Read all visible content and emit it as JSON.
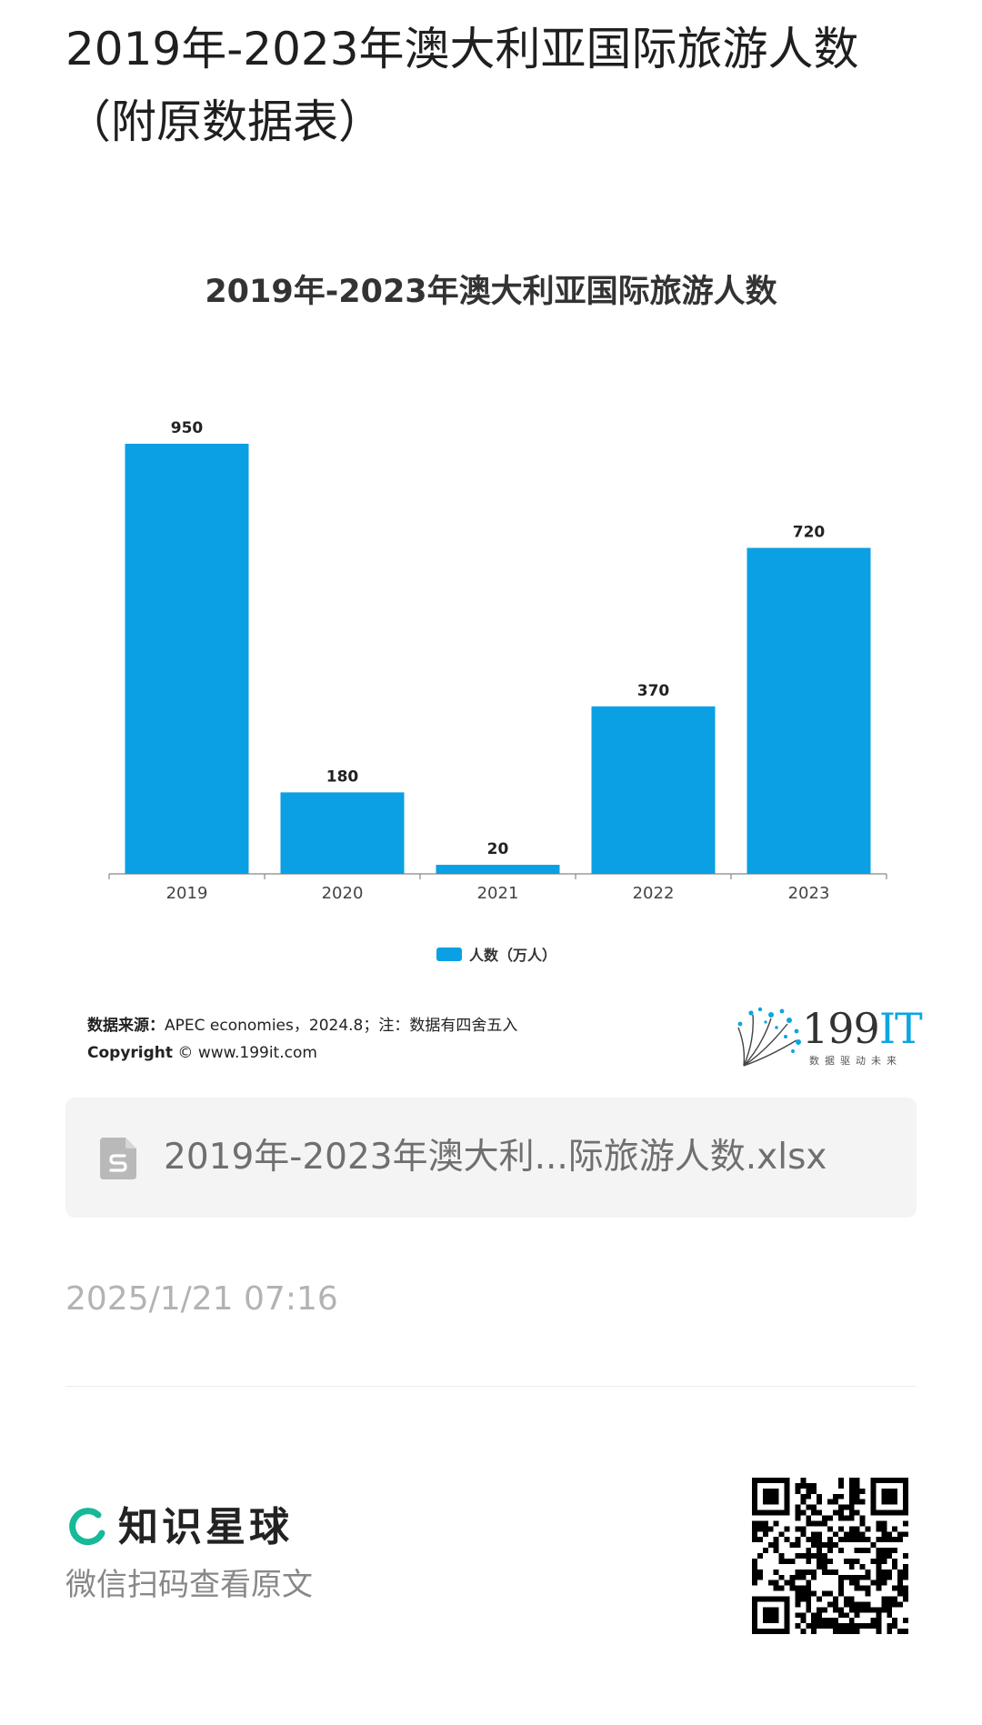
{
  "page": {
    "title": "2019年-2023年澳大利亚国际旅游人数（附原数据表）"
  },
  "chart_data": {
    "type": "bar",
    "title": "2019年-2023年澳大利亚国际旅游人数",
    "categories": [
      "2019",
      "2020",
      "2021",
      "2022",
      "2023"
    ],
    "series": [
      {
        "name": "人数（万人）",
        "values": [
          950,
          180,
          20,
          370,
          720
        ],
        "color": "#0aa0e3"
      }
    ],
    "ylim": [
      0,
      950
    ],
    "grid": false,
    "legend": "bottom-center"
  },
  "source": {
    "label": "数据来源：",
    "text": "APEC economies，2024.8；注：数据有四舍五入",
    "copyright_label": "Copyright",
    "copyright_text": "©  www.199it.com"
  },
  "logo": {
    "text_main": "199",
    "text_accent": "IT",
    "tagline": "数据驱动未来"
  },
  "attachment": {
    "file_name": "2019年-2023年澳大利...际旅游人数.xlsx",
    "icon": "spreadsheet-file-icon"
  },
  "meta": {
    "timestamp": "2025/1/21 07:16"
  },
  "footer": {
    "brand_name": "知识星球",
    "scan_text": "微信扫码查看原文",
    "brand_color": "#16b998"
  }
}
